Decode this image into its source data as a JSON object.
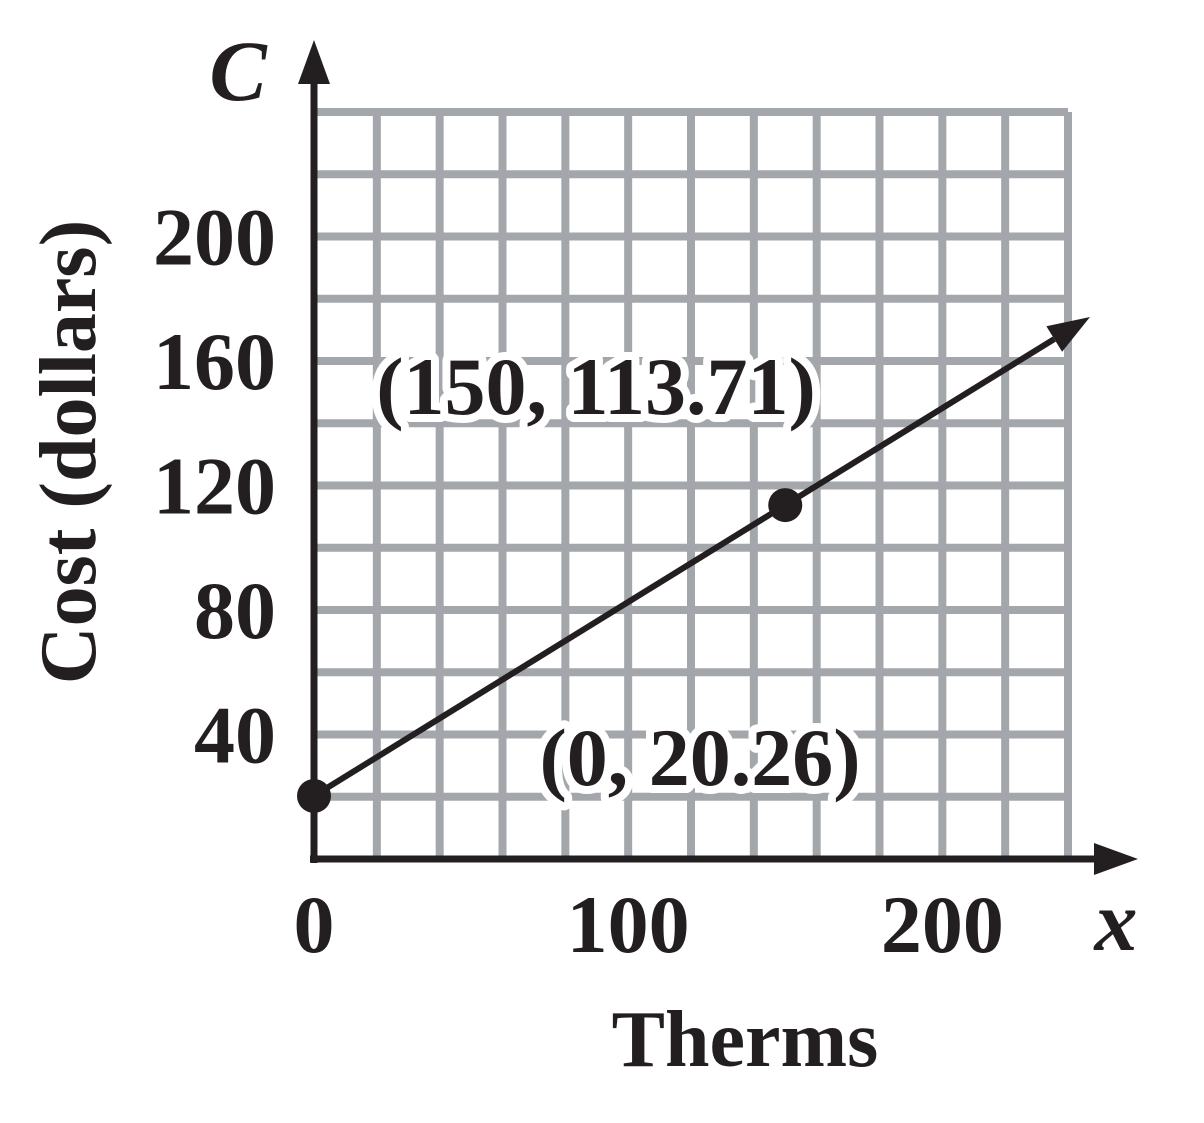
{
  "chart_data": {
    "type": "line",
    "title": "",
    "xlabel": "Therms",
    "ylabel": "Cost (dollars)",
    "x_variable": "x",
    "y_variable": "C",
    "xlim": [
      0,
      240
    ],
    "ylim": [
      0,
      240
    ],
    "x_ticks": [
      {
        "value": 0,
        "label": "0"
      },
      {
        "value": 100,
        "label": "100"
      },
      {
        "value": 200,
        "label": "200"
      }
    ],
    "y_ticks": [
      {
        "value": 40,
        "label": "40"
      },
      {
        "value": 80,
        "label": "80"
      },
      {
        "value": 120,
        "label": "120"
      },
      {
        "value": 160,
        "label": "160"
      },
      {
        "value": 200,
        "label": "200"
      }
    ],
    "grid": true,
    "grid_x_step": 20,
    "grid_y_step": 20,
    "series": [
      {
        "x": [
          0,
          150
        ],
        "y": [
          20.26,
          113.71
        ],
        "extends_right": true
      }
    ],
    "points": [
      {
        "x": 0,
        "y": 20.26,
        "label": "(0, 20.26)"
      },
      {
        "x": 150,
        "y": 113.71,
        "label": "(150, 113.71)"
      }
    ]
  }
}
